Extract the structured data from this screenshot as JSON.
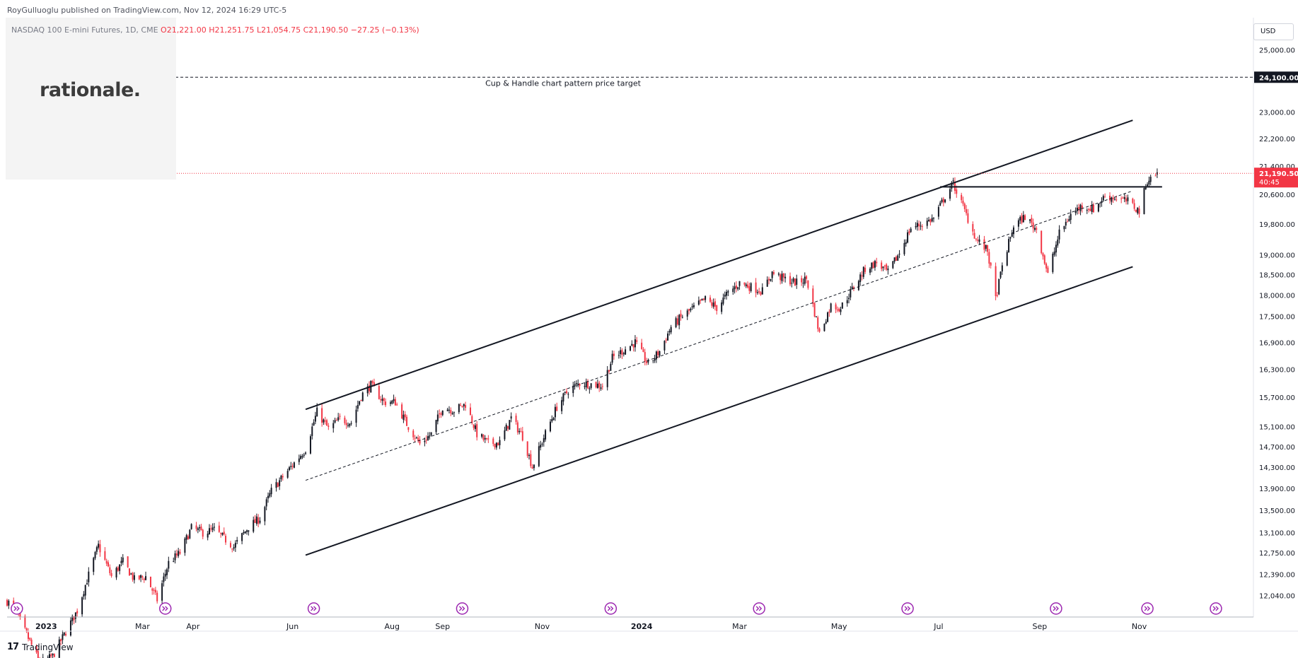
{
  "header": {
    "publisher": "RoyGulluoglu published on TradingView.com, Nov 12, 2024 16:29 UTC-5",
    "symbol": "NASDAQ 100 E-mini Futures, 1D, CME",
    "open": "O21,221.00",
    "high": "H21,251.75",
    "low": "L21,054.75",
    "close": "C21,190.50",
    "change": "−27.25 (−0.13%)"
  },
  "logo": {
    "text": "rationale."
  },
  "footer": {
    "brand_mark": "𝟭𝟳",
    "brand_text": "TradingView"
  },
  "price_scale": {
    "currency": "USD",
    "ticks": [
      {
        "value": 25000,
        "label": "25,000.00"
      },
      {
        "value": 23000,
        "label": "23,000.00"
      },
      {
        "value": 22200,
        "label": "22,200.00"
      },
      {
        "value": 21400,
        "label": "21,400.00"
      },
      {
        "value": 20600,
        "label": "20,600.00"
      },
      {
        "value": 19800,
        "label": "19,800.00"
      },
      {
        "value": 19000,
        "label": "19,000.00"
      },
      {
        "value": 18500,
        "label": "18,500.00"
      },
      {
        "value": 18000,
        "label": "18,000.00"
      },
      {
        "value": 17500,
        "label": "17,500.00"
      },
      {
        "value": 16900,
        "label": "16,900.00"
      },
      {
        "value": 16300,
        "label": "16,300.00"
      },
      {
        "value": 15700,
        "label": "15,700.00"
      },
      {
        "value": 15100,
        "label": "15,100.00"
      },
      {
        "value": 14700,
        "label": "14,700.00"
      },
      {
        "value": 14300,
        "label": "14,300.00"
      },
      {
        "value": 13900,
        "label": "13,900.00"
      },
      {
        "value": 13500,
        "label": "13,500.00"
      },
      {
        "value": 13100,
        "label": "13,100.00"
      },
      {
        "value": 12750,
        "label": "12,750.00"
      },
      {
        "value": 12390,
        "label": "12,390.00"
      },
      {
        "value": 12040,
        "label": "12,040.00"
      }
    ],
    "target_label": "24,100.00",
    "last_price_label": "21,190.50",
    "countdown": "40:45",
    "colors": {
      "up": "#131722",
      "down": "#f23645",
      "target_box": "#131722",
      "last_box": "#f23645"
    }
  },
  "time_axis": {
    "labels": [
      {
        "text": "2023",
        "date": "2023-01-01",
        "bold": true
      },
      {
        "text": "Mar",
        "date": "2023-03-01"
      },
      {
        "text": "Apr",
        "date": "2023-04-01"
      },
      {
        "text": "Jun",
        "date": "2023-06-01"
      },
      {
        "text": "Aug",
        "date": "2023-08-01"
      },
      {
        "text": "Sep",
        "date": "2023-09-01"
      },
      {
        "text": "Nov",
        "date": "2023-11-01"
      },
      {
        "text": "2024",
        "date": "2024-01-01",
        "bold": true
      },
      {
        "text": "Mar",
        "date": "2024-03-01"
      },
      {
        "text": "May",
        "date": "2024-05-01"
      },
      {
        "text": "Jul",
        "date": "2024-07-01"
      },
      {
        "text": "Sep",
        "date": "2024-09-01"
      },
      {
        "text": "Nov",
        "date": "2024-11-01"
      }
    ],
    "event_icons": [
      "2022-12-14",
      "2023-03-15",
      "2023-06-14",
      "2023-09-13",
      "2023-12-13",
      "2024-03-13",
      "2024-06-12",
      "2024-09-11",
      "2024-11-06",
      "2024-12-18"
    ]
  },
  "chart_data": {
    "type": "candlestick",
    "title": "NASDAQ 100 E-mini Futures, 1D, CME",
    "x_range": [
      "2022-12-08",
      "2025-01-10"
    ],
    "y_range": [
      11700,
      26100
    ],
    "y_scale": "log",
    "grid": false,
    "anchors": [
      {
        "date": "2022-12-08",
        "price": 11950
      },
      {
        "date": "2022-12-12",
        "price": 11850
      },
      {
        "date": "2022-12-28",
        "price": 11000
      },
      {
        "date": "2023-01-05",
        "price": 11100
      },
      {
        "date": "2023-01-20",
        "price": 11800
      },
      {
        "date": "2023-02-02",
        "price": 12870
      },
      {
        "date": "2023-02-10",
        "price": 12350
      },
      {
        "date": "2023-02-17",
        "price": 12600
      },
      {
        "date": "2023-02-24",
        "price": 12300
      },
      {
        "date": "2023-03-03",
        "price": 12350
      },
      {
        "date": "2023-03-10",
        "price": 11970
      },
      {
        "date": "2023-03-17",
        "price": 12580
      },
      {
        "date": "2023-03-24",
        "price": 12750
      },
      {
        "date": "2023-03-31",
        "price": 13180
      },
      {
        "date": "2023-04-07",
        "price": 13100
      },
      {
        "date": "2023-04-14",
        "price": 13150
      },
      {
        "date": "2023-04-26",
        "price": 12850
      },
      {
        "date": "2023-05-05",
        "price": 13200
      },
      {
        "date": "2023-05-12",
        "price": 13350
      },
      {
        "date": "2023-05-19",
        "price": 13850
      },
      {
        "date": "2023-05-31",
        "price": 14300
      },
      {
        "date": "2023-06-09",
        "price": 14650
      },
      {
        "date": "2023-06-16",
        "price": 15400
      },
      {
        "date": "2023-06-23",
        "price": 15050
      },
      {
        "date": "2023-06-30",
        "price": 15250
      },
      {
        "date": "2023-07-07",
        "price": 15180
      },
      {
        "date": "2023-07-13",
        "price": 15730
      },
      {
        "date": "2023-07-19",
        "price": 15960
      },
      {
        "date": "2023-07-27",
        "price": 15600
      },
      {
        "date": "2023-08-03",
        "price": 15600
      },
      {
        "date": "2023-08-10",
        "price": 15150
      },
      {
        "date": "2023-08-18",
        "price": 14750
      },
      {
        "date": "2023-08-25",
        "price": 14950
      },
      {
        "date": "2023-09-01",
        "price": 15500
      },
      {
        "date": "2023-09-08",
        "price": 15430
      },
      {
        "date": "2023-09-15",
        "price": 15560
      },
      {
        "date": "2023-09-22",
        "price": 14950
      },
      {
        "date": "2023-09-29",
        "price": 14760
      },
      {
        "date": "2023-10-06",
        "price": 14780
      },
      {
        "date": "2023-10-13",
        "price": 15270
      },
      {
        "date": "2023-10-20",
        "price": 14900
      },
      {
        "date": "2023-10-26",
        "price": 14300
      },
      {
        "date": "2023-11-02",
        "price": 14880
      },
      {
        "date": "2023-11-10",
        "price": 15500
      },
      {
        "date": "2023-11-17",
        "price": 15850
      },
      {
        "date": "2023-11-24",
        "price": 16000
      },
      {
        "date": "2023-12-01",
        "price": 15980
      },
      {
        "date": "2023-12-08",
        "price": 15950
      },
      {
        "date": "2023-12-14",
        "price": 16550
      },
      {
        "date": "2023-12-28",
        "price": 16900
      },
      {
        "date": "2024-01-05",
        "price": 16400
      },
      {
        "date": "2024-01-12",
        "price": 16700
      },
      {
        "date": "2024-01-19",
        "price": 17250
      },
      {
        "date": "2024-01-26",
        "price": 17500
      },
      {
        "date": "2024-02-02",
        "price": 17700
      },
      {
        "date": "2024-02-09",
        "price": 17900
      },
      {
        "date": "2024-02-16",
        "price": 17700
      },
      {
        "date": "2024-02-23",
        "price": 18050
      },
      {
        "date": "2024-03-01",
        "price": 18300
      },
      {
        "date": "2024-03-08",
        "price": 18200
      },
      {
        "date": "2024-03-15",
        "price": 18100
      },
      {
        "date": "2024-03-21",
        "price": 18550
      },
      {
        "date": "2024-03-28",
        "price": 18400
      },
      {
        "date": "2024-04-05",
        "price": 18300
      },
      {
        "date": "2024-04-11",
        "price": 18400
      },
      {
        "date": "2024-04-19",
        "price": 17100
      },
      {
        "date": "2024-04-26",
        "price": 17750
      },
      {
        "date": "2024-05-02",
        "price": 17700
      },
      {
        "date": "2024-05-10",
        "price": 18200
      },
      {
        "date": "2024-05-17",
        "price": 18650
      },
      {
        "date": "2024-05-24",
        "price": 18800
      },
      {
        "date": "2024-05-31",
        "price": 18550
      },
      {
        "date": "2024-06-07",
        "price": 19050
      },
      {
        "date": "2024-06-14",
        "price": 19700
      },
      {
        "date": "2024-06-21",
        "price": 19800
      },
      {
        "date": "2024-06-28",
        "price": 19950
      },
      {
        "date": "2024-07-05",
        "price": 20550
      },
      {
        "date": "2024-07-10",
        "price": 20900
      },
      {
        "date": "2024-07-17",
        "price": 20150
      },
      {
        "date": "2024-07-24",
        "price": 19400
      },
      {
        "date": "2024-07-31",
        "price": 19100
      },
      {
        "date": "2024-08-05",
        "price": 17900
      },
      {
        "date": "2024-08-09",
        "price": 18700
      },
      {
        "date": "2024-08-16",
        "price": 19750
      },
      {
        "date": "2024-08-23",
        "price": 20000
      },
      {
        "date": "2024-08-30",
        "price": 19650
      },
      {
        "date": "2024-09-06",
        "price": 18500
      },
      {
        "date": "2024-09-13",
        "price": 19550
      },
      {
        "date": "2024-09-20",
        "price": 20050
      },
      {
        "date": "2024-09-27",
        "price": 20300
      },
      {
        "date": "2024-10-04",
        "price": 20200
      },
      {
        "date": "2024-10-11",
        "price": 20550
      },
      {
        "date": "2024-10-18",
        "price": 20500
      },
      {
        "date": "2024-10-25",
        "price": 20400
      },
      {
        "date": "2024-11-01",
        "price": 20150
      },
      {
        "date": "2024-11-06",
        "price": 21000
      },
      {
        "date": "2024-11-12",
        "price": 21190
      }
    ],
    "annotations": {
      "target_line": {
        "price": 24100,
        "label": "Cup & Handle chart pattern price target"
      },
      "last_price": 21190.5,
      "channel_upper": [
        {
          "date": "2023-06-09",
          "price": 15450
        },
        {
          "date": "2024-10-28",
          "price": 22750
        }
      ],
      "channel_lower": [
        {
          "date": "2023-06-09",
          "price": 12710
        },
        {
          "date": "2024-10-28",
          "price": 18700
        }
      ],
      "channel_mid": [
        {
          "date": "2023-06-09",
          "price": 14050
        },
        {
          "date": "2024-10-28",
          "price": 20700
        }
      ],
      "resistance": [
        {
          "date": "2024-07-02",
          "price": 20810
        },
        {
          "date": "2024-11-15",
          "price": 20810
        }
      ]
    }
  }
}
